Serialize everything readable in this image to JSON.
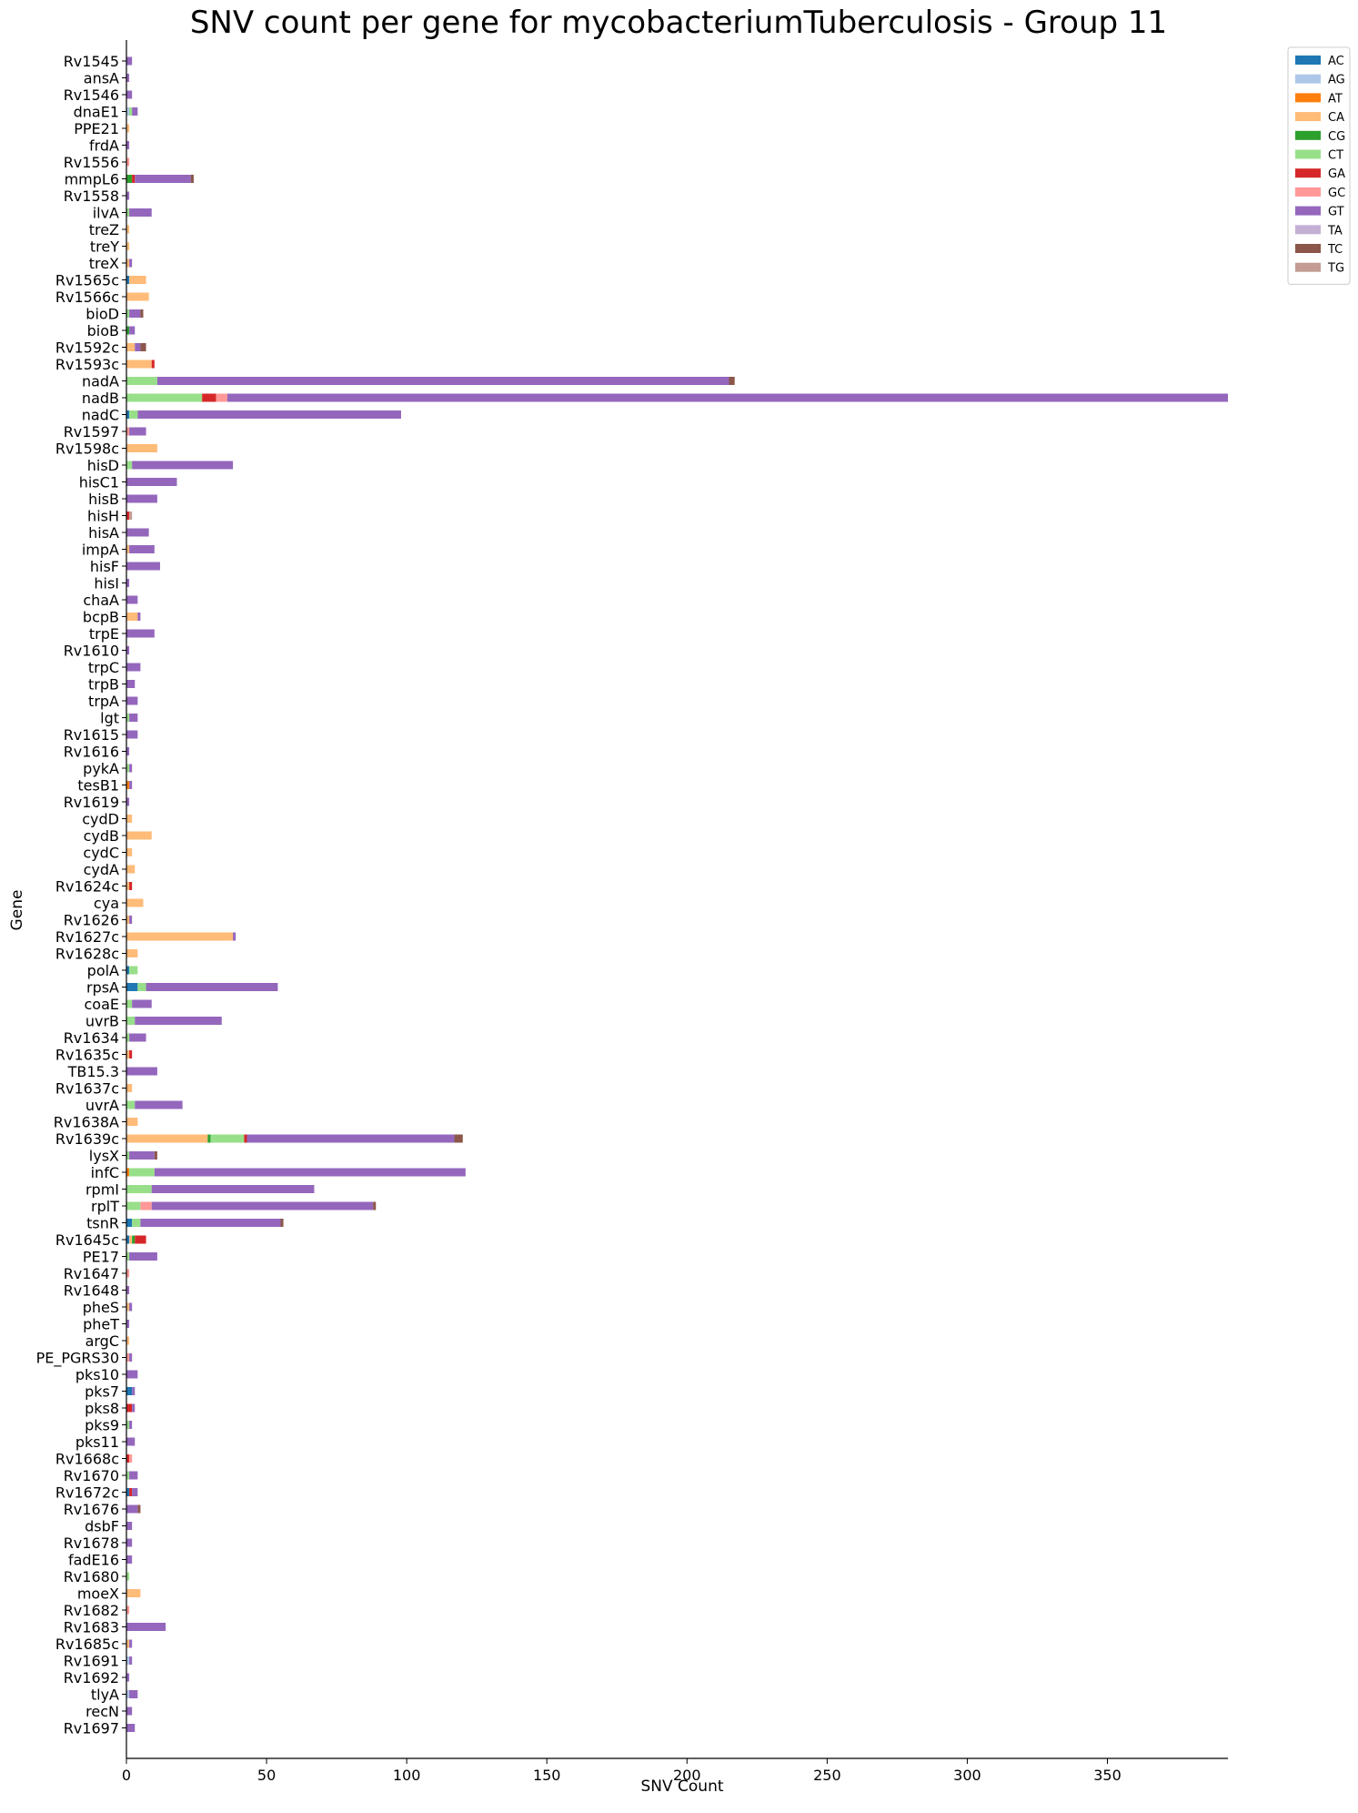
{
  "chart_data": {
    "type": "bar",
    "orientation": "horizontal",
    "stacked": true,
    "title": "SNV count per gene for mycobacteriumTuberculosis - Group 11",
    "xlabel": "SNV Count",
    "ylabel": "Gene",
    "xlim": [
      0,
      393
    ],
    "xticks": [
      0,
      50,
      100,
      150,
      200,
      250,
      300,
      350
    ],
    "grid": false,
    "legend_position": "top-right",
    "series_keys": [
      "AC",
      "AG",
      "AT",
      "CA",
      "CG",
      "CT",
      "GA",
      "GC",
      "GT",
      "TA",
      "TC",
      "TG"
    ],
    "series": [
      {
        "name": "AC",
        "color": "#1f77b4"
      },
      {
        "name": "AG",
        "color": "#aec7e8"
      },
      {
        "name": "AT",
        "color": "#ff7f0e"
      },
      {
        "name": "CA",
        "color": "#ffbb78"
      },
      {
        "name": "CG",
        "color": "#2ca02c"
      },
      {
        "name": "CT",
        "color": "#98df8a"
      },
      {
        "name": "GA",
        "color": "#d62728"
      },
      {
        "name": "GC",
        "color": "#ff9896"
      },
      {
        "name": "GT",
        "color": "#9467bd"
      },
      {
        "name": "TA",
        "color": "#c5b0d5"
      },
      {
        "name": "TC",
        "color": "#8c564b"
      },
      {
        "name": "TG",
        "color": "#c49c94"
      }
    ],
    "genes": [
      {
        "gene": "Rv1545",
        "v": {
          "GT": 2
        }
      },
      {
        "gene": "ansA",
        "v": {
          "GT": 1
        }
      },
      {
        "gene": "Rv1546",
        "v": {
          "GT": 2
        }
      },
      {
        "gene": "dnaE1",
        "v": {
          "AG": 1,
          "CT": 1,
          "GT": 2
        }
      },
      {
        "gene": "PPE21",
        "v": {
          "CA": 1
        }
      },
      {
        "gene": "frdA",
        "v": {
          "GT": 1
        }
      },
      {
        "gene": "Rv1556",
        "v": {
          "GC": 1
        }
      },
      {
        "gene": "mmpL6",
        "v": {
          "CG": 2,
          "GA": 1,
          "GT": 20,
          "TC": 1
        }
      },
      {
        "gene": "Rv1558",
        "v": {
          "GT": 1
        }
      },
      {
        "gene": "ilvA",
        "v": {
          "CT": 1,
          "GT": 8
        }
      },
      {
        "gene": "treZ",
        "v": {
          "CA": 1
        }
      },
      {
        "gene": "treY",
        "v": {
          "CA": 1
        }
      },
      {
        "gene": "treX",
        "v": {
          "CA": 1,
          "GT": 1
        }
      },
      {
        "gene": "Rv1565c",
        "v": {
          "AC": 1,
          "CA": 6
        }
      },
      {
        "gene": "Rv1566c",
        "v": {
          "CA": 8
        }
      },
      {
        "gene": "bioD",
        "v": {
          "CT": 1,
          "GT": 4,
          "TC": 1
        }
      },
      {
        "gene": "bioB",
        "v": {
          "CG": 1,
          "GT": 2
        }
      },
      {
        "gene": "Rv1592c",
        "v": {
          "CA": 3,
          "GT": 2,
          "TC": 2
        }
      },
      {
        "gene": "Rv1593c",
        "v": {
          "CA": 9,
          "GA": 1
        }
      },
      {
        "gene": "nadA",
        "v": {
          "CT": 11,
          "GT": 204,
          "TC": 2
        }
      },
      {
        "gene": "nadB",
        "v": {
          "CT": 27,
          "GA": 5,
          "GC": 4,
          "GT": 357
        }
      },
      {
        "gene": "nadC",
        "v": {
          "AC": 1,
          "CT": 3,
          "GT": 94
        }
      },
      {
        "gene": "Rv1597",
        "v": {
          "GC": 1,
          "GT": 6
        }
      },
      {
        "gene": "Rv1598c",
        "v": {
          "CA": 11
        }
      },
      {
        "gene": "hisD",
        "v": {
          "CT": 2,
          "GT": 36
        }
      },
      {
        "gene": "hisC1",
        "v": {
          "GT": 18
        }
      },
      {
        "gene": "hisB",
        "v": {
          "GT": 11
        }
      },
      {
        "gene": "hisH",
        "v": {
          "TG": 1,
          "GA": 1
        }
      },
      {
        "gene": "hisA",
        "v": {
          "GT": 8
        }
      },
      {
        "gene": "impA",
        "v": {
          "CA": 1,
          "GT": 9
        }
      },
      {
        "gene": "hisF",
        "v": {
          "GT": 12
        }
      },
      {
        "gene": "hisI",
        "v": {
          "GT": 1
        }
      },
      {
        "gene": "chaA",
        "v": {
          "GT": 4
        }
      },
      {
        "gene": "bcpB",
        "v": {
          "CA": 4,
          "GT": 1
        }
      },
      {
        "gene": "trpE",
        "v": {
          "GT": 10
        }
      },
      {
        "gene": "Rv1610",
        "v": {
          "GT": 1
        }
      },
      {
        "gene": "trpC",
        "v": {
          "GT": 5
        }
      },
      {
        "gene": "trpB",
        "v": {
          "GT": 3
        }
      },
      {
        "gene": "trpA",
        "v": {
          "GT": 4
        }
      },
      {
        "gene": "lgt",
        "v": {
          "CT": 1,
          "GT": 3
        }
      },
      {
        "gene": "Rv1615",
        "v": {
          "GT": 4
        }
      },
      {
        "gene": "Rv1616",
        "v": {
          "GT": 1
        }
      },
      {
        "gene": "pykA",
        "v": {
          "CT": 1,
          "GT": 1
        }
      },
      {
        "gene": "tesB1",
        "v": {
          "AT": 1,
          "GT": 1
        }
      },
      {
        "gene": "Rv1619",
        "v": {
          "GT": 1
        }
      },
      {
        "gene": "cydD",
        "v": {
          "CA": 2
        }
      },
      {
        "gene": "cydB",
        "v": {
          "CA": 9
        }
      },
      {
        "gene": "cydC",
        "v": {
          "CA": 2
        }
      },
      {
        "gene": "cydA",
        "v": {
          "CA": 3
        }
      },
      {
        "gene": "Rv1624c",
        "v": {
          "CA": 1,
          "GA": 1
        }
      },
      {
        "gene": "cya",
        "v": {
          "CA": 6
        }
      },
      {
        "gene": "Rv1626",
        "v": {
          "CA": 1,
          "GT": 1
        }
      },
      {
        "gene": "Rv1627c",
        "v": {
          "CA": 38,
          "GT": 1
        }
      },
      {
        "gene": "Rv1628c",
        "v": {
          "CA": 4
        }
      },
      {
        "gene": "polA",
        "v": {
          "AC": 1,
          "CT": 3
        }
      },
      {
        "gene": "rpsA",
        "v": {
          "AC": 4,
          "CT": 3,
          "GT": 47
        }
      },
      {
        "gene": "coaE",
        "v": {
          "CT": 2,
          "GT": 7
        }
      },
      {
        "gene": "uvrB",
        "v": {
          "CT": 3,
          "GT": 31
        }
      },
      {
        "gene": "Rv1634",
        "v": {
          "CT": 1,
          "GT": 6
        }
      },
      {
        "gene": "Rv1635c",
        "v": {
          "CA": 1,
          "GA": 1
        }
      },
      {
        "gene": "TB15.3",
        "v": {
          "GT": 11
        }
      },
      {
        "gene": "Rv1637c",
        "v": {
          "CA": 2
        }
      },
      {
        "gene": "uvrA",
        "v": {
          "CT": 3,
          "GT": 17
        }
      },
      {
        "gene": "Rv1638A",
        "v": {
          "CA": 4
        }
      },
      {
        "gene": "Rv1639c",
        "v": {
          "CA": 29,
          "CG": 1,
          "CT": 12,
          "GA": 1,
          "GT": 74,
          "TC": 3
        }
      },
      {
        "gene": "lysX",
        "v": {
          "CT": 1,
          "GT": 9,
          "TC": 1
        }
      },
      {
        "gene": "infC",
        "v": {
          "AT": 1,
          "CT": 9,
          "GT": 111
        }
      },
      {
        "gene": "rpmI",
        "v": {
          "CT": 9,
          "GT": 58
        }
      },
      {
        "gene": "rplT",
        "v": {
          "CT": 5,
          "GC": 4,
          "GT": 79,
          "TC": 1
        }
      },
      {
        "gene": "tsnR",
        "v": {
          "AC": 2,
          "CT": 3,
          "GT": 50,
          "TC": 1
        }
      },
      {
        "gene": "Rv1645c",
        "v": {
          "AC": 1,
          "CA": 1,
          "CG": 1,
          "GA": 4
        }
      },
      {
        "gene": "PE17",
        "v": {
          "CT": 1,
          "GT": 10
        }
      },
      {
        "gene": "Rv1647",
        "v": {
          "GC": 1
        }
      },
      {
        "gene": "Rv1648",
        "v": {
          "GT": 1
        }
      },
      {
        "gene": "pheS",
        "v": {
          "CA": 1,
          "GT": 1
        }
      },
      {
        "gene": "pheT",
        "v": {
          "GT": 1
        }
      },
      {
        "gene": "argC",
        "v": {
          "CA": 1
        }
      },
      {
        "gene": "PE_PGRS30",
        "v": {
          "GC": 1,
          "GT": 1
        }
      },
      {
        "gene": "pks10",
        "v": {
          "GT": 4
        }
      },
      {
        "gene": "pks7",
        "v": {
          "AC": 2,
          "GT": 1
        }
      },
      {
        "gene": "pks8",
        "v": {
          "GA": 2,
          "GT": 1
        }
      },
      {
        "gene": "pks9",
        "v": {
          "CT": 1,
          "GT": 1
        }
      },
      {
        "gene": "pks11",
        "v": {
          "GT": 3
        }
      },
      {
        "gene": "Rv1668c",
        "v": {
          "GC": 1,
          "GA": 1
        }
      },
      {
        "gene": "Rv1670",
        "v": {
          "CT": 1,
          "GT": 3
        }
      },
      {
        "gene": "Rv1672c",
        "v": {
          "AC": 1,
          "GA": 1,
          "GT": 2
        }
      },
      {
        "gene": "Rv1676",
        "v": {
          "GT": 4,
          "TC": 1
        }
      },
      {
        "gene": "dsbF",
        "v": {
          "GT": 2
        }
      },
      {
        "gene": "Rv1678",
        "v": {
          "GT": 2
        }
      },
      {
        "gene": "fadE16",
        "v": {
          "GT": 2
        }
      },
      {
        "gene": "Rv1680",
        "v": {
          "CT": 1
        }
      },
      {
        "gene": "moeX",
        "v": {
          "CA": 5
        }
      },
      {
        "gene": "Rv1682",
        "v": {
          "GC": 1
        }
      },
      {
        "gene": "Rv1683",
        "v": {
          "GT": 14
        }
      },
      {
        "gene": "Rv1685c",
        "v": {
          "CA": 1,
          "GT": 1
        }
      },
      {
        "gene": "Rv1691",
        "v": {
          "AG": 1,
          "GT": 1
        }
      },
      {
        "gene": "Rv1692",
        "v": {
          "GT": 1
        }
      },
      {
        "gene": "tlyA",
        "v": {
          "AG": 1,
          "GT": 3
        }
      },
      {
        "gene": "recN",
        "v": {
          "GT": 2
        }
      },
      {
        "gene": "Rv1697",
        "v": {
          "GT": 3
        }
      }
    ]
  }
}
